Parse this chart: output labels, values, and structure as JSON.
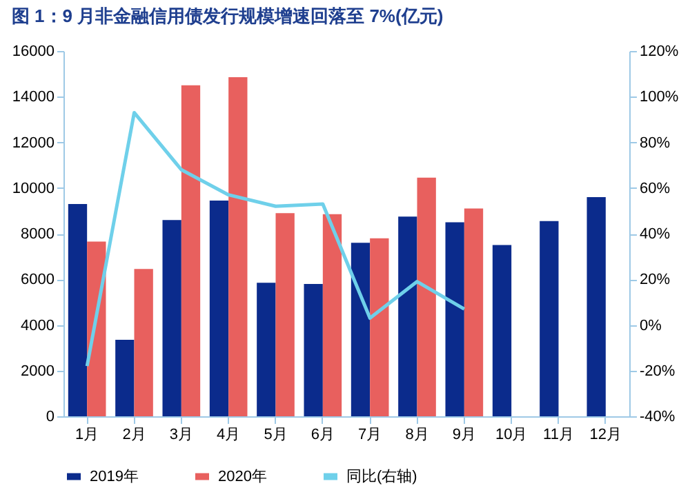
{
  "chart_data": {
    "type": "bar",
    "title": "图 1：9 月非金融信用债发行规模增速回落至 7%(亿元)",
    "categories": [
      "1月",
      "2月",
      "3月",
      "4月",
      "5月",
      "6月",
      "7月",
      "8月",
      "9月",
      "10月",
      "11月",
      "12月"
    ],
    "series": [
      {
        "name": "2019年",
        "color": "#0b2b8c",
        "values": [
          9300,
          3350,
          8600,
          9450,
          5850,
          5800,
          7600,
          8750,
          8500,
          7500,
          8550,
          9600
        ]
      },
      {
        "name": "2020年",
        "color": "#e8605e",
        "values": [
          7650,
          6450,
          14500,
          14850,
          8900,
          8850,
          7800,
          10450,
          9100,
          null,
          null,
          null
        ]
      },
      {
        "name": "同比(右轴)",
        "type": "line",
        "axis": "y2",
        "color": "#6fd0ea",
        "values": [
          -18,
          93,
          68,
          57,
          52,
          53,
          3,
          19,
          7,
          null,
          null,
          null
        ]
      }
    ],
    "ylim": [
      0,
      16000
    ],
    "yticks": [
      0,
      2000,
      4000,
      6000,
      8000,
      10000,
      12000,
      14000,
      16000
    ],
    "y2lim": [
      -40,
      120
    ],
    "y2ticks": [
      {
        "value": -40,
        "label": "-40%"
      },
      {
        "value": -20,
        "label": "-20%"
      },
      {
        "value": 0,
        "label": "0%"
      },
      {
        "value": 20,
        "label": "20%"
      },
      {
        "value": 40,
        "label": "40%"
      },
      {
        "value": 60,
        "label": "60%"
      },
      {
        "value": 80,
        "label": "80%"
      },
      {
        "value": 100,
        "label": "100%"
      },
      {
        "value": 120,
        "label": "120%"
      }
    ],
    "legend": "bottom",
    "grid": false
  }
}
